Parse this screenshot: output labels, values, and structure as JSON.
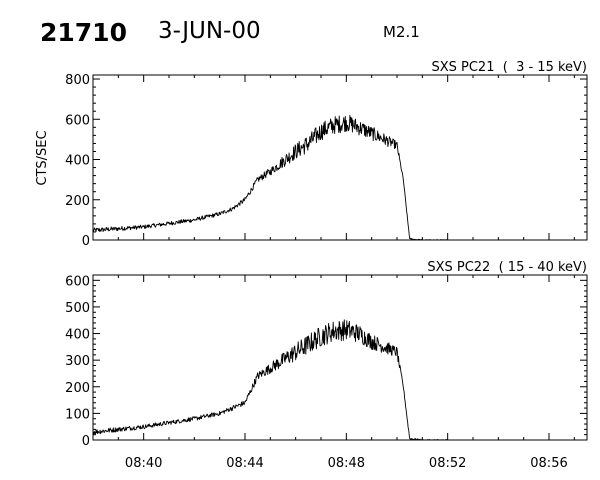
{
  "header": {
    "event_id": "21710",
    "date": "3-JUN-00",
    "flare_class": "M2.1"
  },
  "chart_data": [
    {
      "type": "line",
      "title": "SXS PC21  (  3 - 15 keV)",
      "ylabel": "CTS/SEC",
      "xlim": [
        "08:38",
        "08:57:30"
      ],
      "ylim": [
        0,
        820
      ],
      "yticks": [
        0,
        200,
        400,
        600,
        800
      ],
      "xticks": [
        "08:40",
        "08:44",
        "08:48",
        "08:52",
        "08:56"
      ],
      "grid": false,
      "series": [
        {
          "color": "#000000",
          "x": [
            "08:38",
            "08:40",
            "08:42",
            "08:43",
            "08:43:30",
            "08:44",
            "08:44:30",
            "08:45",
            "08:46",
            "08:46:30",
            "08:47",
            "08:47:30",
            "08:48",
            "08:48:30",
            "08:49",
            "08:49:30",
            "08:50",
            "08:50:15",
            "08:50:30",
            "08:51",
            "08:52"
          ],
          "y": [
            48,
            65,
            100,
            130,
            155,
            200,
            300,
            340,
            440,
            480,
            540,
            570,
            585,
            560,
            530,
            500,
            470,
            300,
            5,
            0,
            0
          ],
          "noise": [
            12,
            10,
            10,
            10,
            10,
            12,
            15,
            20,
            40,
            45,
            45,
            45,
            45,
            40,
            35,
            30,
            20,
            5,
            5,
            2,
            2
          ]
        }
      ]
    },
    {
      "type": "line",
      "title": "SXS PC22  ( 15 - 40 keV)",
      "ylabel": "",
      "xlim": [
        "08:38",
        "08:57:30"
      ],
      "ylim": [
        0,
        620
      ],
      "yticks": [
        0,
        100,
        200,
        300,
        400,
        500,
        600
      ],
      "xticks": [
        "08:40",
        "08:44",
        "08:48",
        "08:52",
        "08:56"
      ],
      "grid": false,
      "series": [
        {
          "color": "#000000",
          "x": [
            "08:38",
            "08:40",
            "08:42",
            "08:43",
            "08:44",
            "08:44:30",
            "08:45",
            "08:46",
            "08:47",
            "08:47:30",
            "08:48",
            "08:48:30",
            "08:49",
            "08:49:30",
            "08:50",
            "08:50:15",
            "08:50:30",
            "08:51",
            "08:52"
          ],
          "y": [
            30,
            50,
            80,
            100,
            140,
            240,
            270,
            330,
            390,
            410,
            415,
            400,
            370,
            350,
            330,
            200,
            5,
            0,
            0
          ],
          "noise": [
            10,
            8,
            8,
            8,
            10,
            15,
            20,
            35,
            40,
            40,
            40,
            35,
            30,
            25,
            20,
            5,
            5,
            2,
            2
          ]
        }
      ]
    }
  ]
}
